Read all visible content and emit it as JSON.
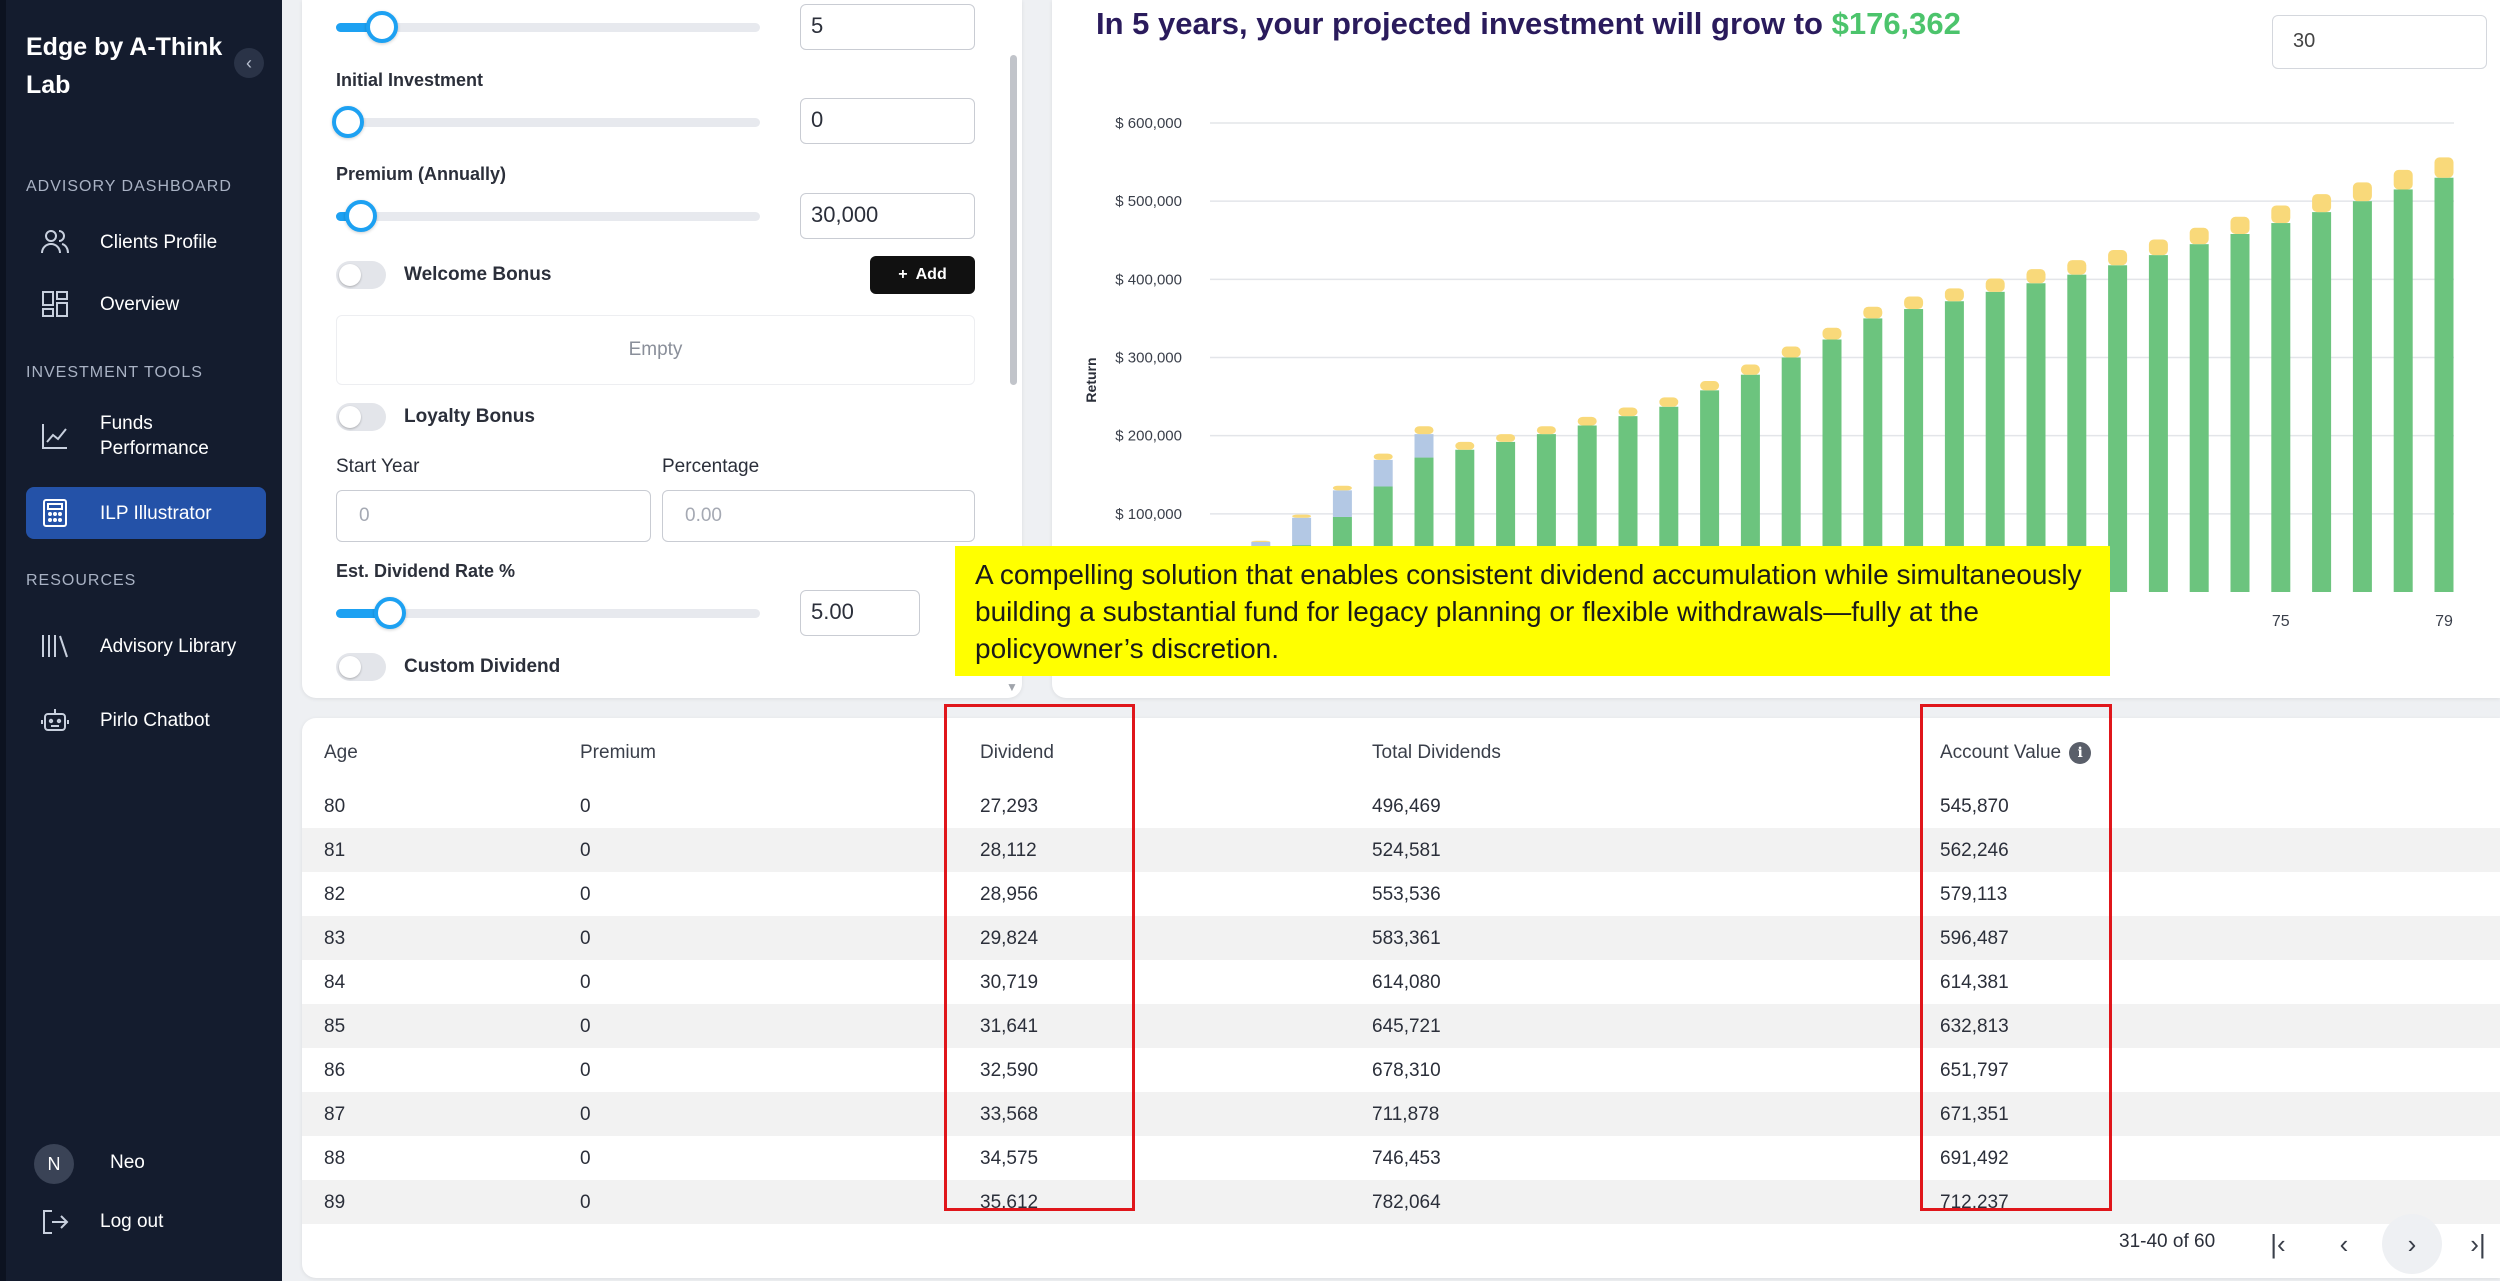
{
  "sidebar": {
    "brand": "Edge by A-Think Lab",
    "collapse_icon": "chevron-left-icon",
    "sections": [
      {
        "title": "ADVISORY DASHBOARD",
        "items": [
          {
            "label": "Clients Profile",
            "icon": "users-icon"
          },
          {
            "label": "Overview",
            "icon": "grid-icon"
          }
        ]
      },
      {
        "title": "INVESTMENT TOOLS",
        "items": [
          {
            "label": "Funds Performance",
            "icon": "line-chart-icon"
          },
          {
            "label": "ILP Illustrator",
            "icon": "calculator-icon",
            "active": true
          }
        ]
      },
      {
        "title": "RESOURCES",
        "items": [
          {
            "label": "Advisory Library",
            "icon": "library-icon"
          },
          {
            "label": "Pirlo Chatbot",
            "icon": "bot-icon"
          }
        ]
      }
    ],
    "user": {
      "initial": "N",
      "name": "Neo"
    },
    "logout_label": "Log out"
  },
  "form": {
    "top_slider_value": "5",
    "initial_investment_label": "Initial Investment",
    "initial_investment_value": "0",
    "premium_label": "Premium (Annually)",
    "premium_value": "30,000",
    "welcome_bonus_label": "Welcome Bonus",
    "add_label": "Add",
    "empty_label": "Empty",
    "loyalty_bonus_label": "Loyalty Bonus",
    "start_year_label": "Start Year",
    "start_year_placeholder": "0",
    "percentage_label": "Percentage",
    "percentage_placeholder": "0.00",
    "dividend_rate_label": "Est. Dividend Rate %",
    "dividend_rate_value": "5.00",
    "custom_dividend_label": "Custom Dividend",
    "sliders": {
      "top": 0.08,
      "initial": 0.0,
      "premium": 0.03,
      "dividend": 0.1
    }
  },
  "chart": {
    "headline_prefix": "In 5 years, your projected investment will grow to",
    "headline_amount": "$176,362",
    "years_input_value": "30",
    "colors": {
      "account": "#6cc47e",
      "gain": "#b3c8e4",
      "dividend": "#f9d97a"
    }
  },
  "chart_data": {
    "type": "bar",
    "stacked": true,
    "ylabel": "Return",
    "ylim": [
      0,
      600000
    ],
    "yticks": [
      "$ 100,000",
      "$ 200,000",
      "$ 300,000",
      "$ 400,000",
      "$ 500,000",
      "$ 600,000"
    ],
    "ytick_values": [
      100000,
      200000,
      300000,
      400000,
      500000,
      600000
    ],
    "x": [
      49,
      50,
      51,
      52,
      53,
      54,
      55,
      56,
      57,
      58,
      59,
      60,
      61,
      62,
      63,
      64,
      65,
      66,
      67,
      68,
      69,
      70,
      71,
      72,
      73,
      74,
      75,
      76,
      77,
      78,
      79
    ],
    "visible_xticks": [
      "75",
      "79"
    ],
    "series": [
      {
        "values": [
          2000,
          30000,
          60000,
          96000,
          135000,
          172000,
          182000,
          192000,
          202000,
          213000,
          225000,
          237000,
          258000,
          278000,
          300000,
          323000,
          350000,
          362000,
          372000,
          384000,
          395000,
          406000,
          418000,
          431000,
          445000,
          458000,
          472000,
          486000,
          500000,
          515000,
          530000
        ]
      },
      {
        "values": [
          4000,
          34000,
          35000,
          34000,
          34000,
          30000,
          0,
          0,
          0,
          0,
          0,
          0,
          0,
          0,
          0,
          0,
          0,
          0,
          0,
          0,
          0,
          0,
          0,
          0,
          0,
          0,
          0,
          0,
          0,
          0,
          0
        ]
      },
      {
        "values": [
          500,
          1500,
          4000,
          6000,
          8000,
          10000,
          10000,
          10000,
          10000,
          11000,
          11000,
          12000,
          12000,
          13000,
          14000,
          15000,
          15000,
          16000,
          16500,
          17000,
          18000,
          18500,
          19500,
          20000,
          21000,
          22000,
          22500,
          23000,
          24000,
          25000,
          26000
        ]
      }
    ]
  },
  "annotation": "A compelling solution that enables consistent dividend accumulation while simultaneously building a substantial fund for legacy planning or flexible withdrawals—fully at the policyowner’s discretion.",
  "table": {
    "headers": {
      "age": "Age",
      "premium": "Premium",
      "dividend": "Dividend",
      "total_dividends": "Total Dividends",
      "account_value": "Account Value"
    },
    "rows": [
      {
        "age": "80",
        "premium": "0",
        "dividend": "27,293",
        "total_dividends": "496,469",
        "account_value": "545,870"
      },
      {
        "age": "81",
        "premium": "0",
        "dividend": "28,112",
        "total_dividends": "524,581",
        "account_value": "562,246"
      },
      {
        "age": "82",
        "premium": "0",
        "dividend": "28,956",
        "total_dividends": "553,536",
        "account_value": "579,113"
      },
      {
        "age": "83",
        "premium": "0",
        "dividend": "29,824",
        "total_dividends": "583,361",
        "account_value": "596,487"
      },
      {
        "age": "84",
        "premium": "0",
        "dividend": "30,719",
        "total_dividends": "614,080",
        "account_value": "614,381"
      },
      {
        "age": "85",
        "premium": "0",
        "dividend": "31,641",
        "total_dividends": "645,721",
        "account_value": "632,813"
      },
      {
        "age": "86",
        "premium": "0",
        "dividend": "32,590",
        "total_dividends": "678,310",
        "account_value": "651,797"
      },
      {
        "age": "87",
        "premium": "0",
        "dividend": "33,568",
        "total_dividends": "711,878",
        "account_value": "671,351"
      },
      {
        "age": "88",
        "premium": "0",
        "dividend": "34,575",
        "total_dividends": "746,453",
        "account_value": "691,492"
      },
      {
        "age": "89",
        "premium": "0",
        "dividend": "35,612",
        "total_dividends": "782,064",
        "account_value": "712,237"
      }
    ],
    "pagination": "31-40 of 60"
  }
}
